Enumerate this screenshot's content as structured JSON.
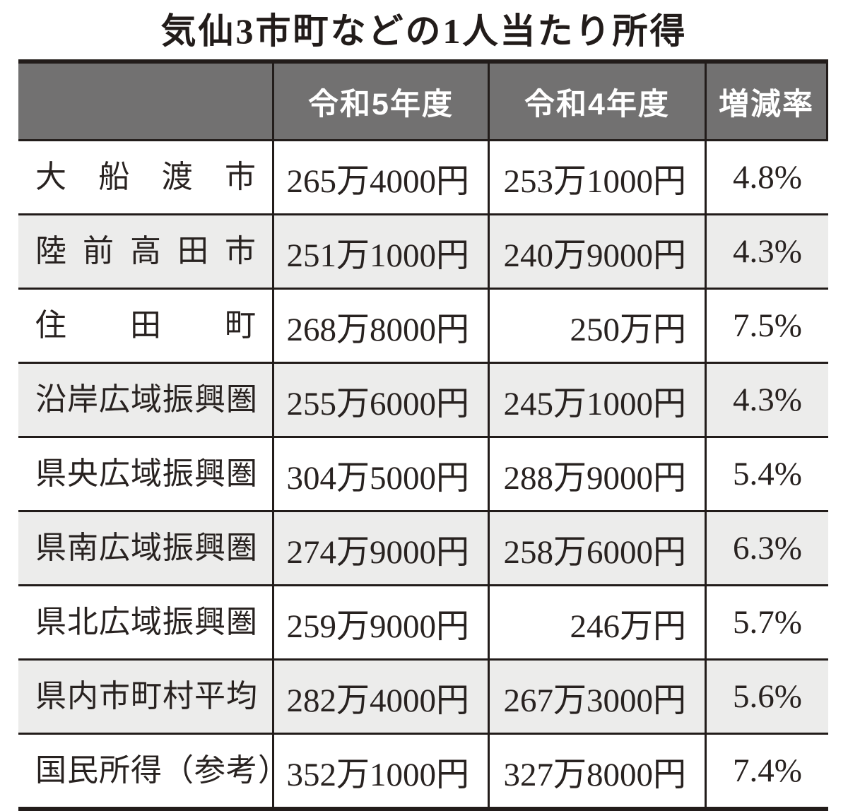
{
  "title": "気仙3市町などの1人当たり所得",
  "colors": {
    "header_bg": "#727171",
    "stripe_bg": "#ececeb",
    "ink": "#221c1a",
    "header_text": "#ffffff"
  },
  "table": {
    "headers": {
      "region": "",
      "reiwa5": "令和5年度",
      "reiwa4": "令和4年度",
      "rate": "増減率"
    },
    "rows": [
      {
        "region": "大船渡市",
        "reiwa5": "265万4000円",
        "reiwa4": "253万1000円",
        "rate": "4.8%"
      },
      {
        "region": "陸前高田市",
        "reiwa5": "251万1000円",
        "reiwa4": "240万9000円",
        "rate": "4.3%"
      },
      {
        "region": "住田町",
        "reiwa5": "268万8000円",
        "reiwa4": "250万円",
        "rate": "7.5%"
      },
      {
        "region": "沿岸広域振興圏",
        "reiwa5": "255万6000円",
        "reiwa4": "245万1000円",
        "rate": "4.3%"
      },
      {
        "region": "県央広域振興圏",
        "reiwa5": "304万5000円",
        "reiwa4": "288万9000円",
        "rate": "5.4%"
      },
      {
        "region": "県南広域振興圏",
        "reiwa5": "274万9000円",
        "reiwa4": "258万6000円",
        "rate": "6.3%"
      },
      {
        "region": "県北広域振興圏",
        "reiwa5": "259万9000円",
        "reiwa4": "246万円",
        "rate": "5.7%"
      },
      {
        "region": "県内市町村平均",
        "reiwa5": "282万4000円",
        "reiwa4": "267万3000円",
        "rate": "5.6%"
      },
      {
        "region": "国民所得（参考）",
        "reiwa5": "352万1000円",
        "reiwa4": "327万8000円",
        "rate": "7.4%"
      }
    ]
  },
  "chart_data": {
    "type": "table",
    "title": "気仙3市町などの1人当たり所得",
    "columns": [
      "",
      "令和5年度",
      "令和4年度",
      "増減率"
    ],
    "rows": [
      [
        "大船渡市",
        "265万4000円",
        "253万1000円",
        "4.8%"
      ],
      [
        "陸前高田市",
        "251万1000円",
        "240万9000円",
        "4.3%"
      ],
      [
        "住田町",
        "268万8000円",
        "250万円",
        "7.5%"
      ],
      [
        "沿岸広域振興圏",
        "255万6000円",
        "245万1000円",
        "4.3%"
      ],
      [
        "県央広域振興圏",
        "304万5000円",
        "288万9000円",
        "5.4%"
      ],
      [
        "県南広域振興圏",
        "274万9000円",
        "258万6000円",
        "6.3%"
      ],
      [
        "県北広域振興圏",
        "259万9000円",
        "246万円",
        "5.7%"
      ],
      [
        "県内市町村平均",
        "282万4000円",
        "267万3000円",
        "5.6%"
      ],
      [
        "国民所得（参考）",
        "352万1000円",
        "327万8000円",
        "7.4%"
      ]
    ],
    "values_yen": {
      "reiwa5": [
        2654000,
        2511000,
        2688000,
        2556000,
        3045000,
        2749000,
        2599000,
        2824000,
        3521000
      ],
      "reiwa4": [
        2531000,
        2409000,
        2500000,
        2451000,
        2889000,
        2586000,
        2460000,
        2673000,
        3278000
      ]
    },
    "rates_percent": [
      4.8,
      4.3,
      7.5,
      4.3,
      5.4,
      6.3,
      5.7,
      5.6,
      7.4
    ],
    "layout": {
      "striped_row_indices": [
        1,
        3,
        5,
        7
      ],
      "value_alignment": "right",
      "rate_alignment": "center"
    }
  }
}
